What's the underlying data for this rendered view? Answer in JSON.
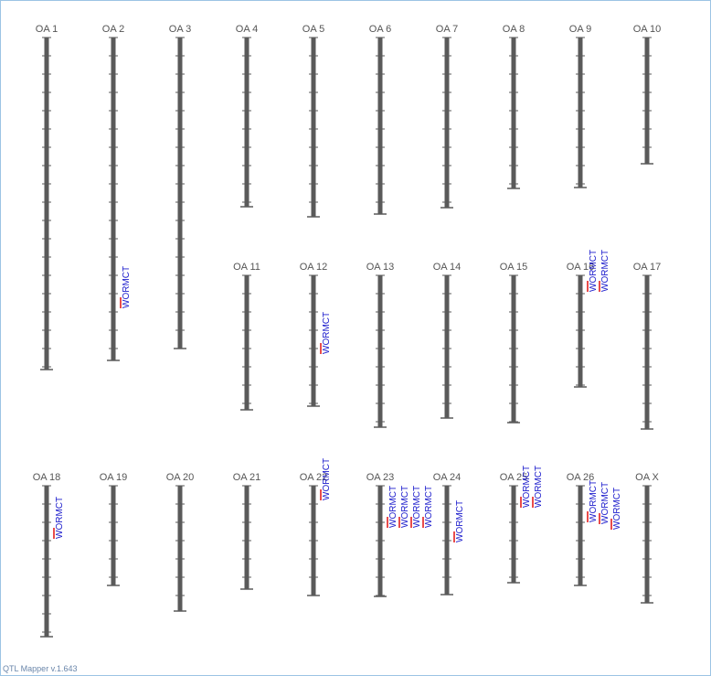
{
  "chromosomes": [
    {
      "label": "OA 1",
      "length": 181.5,
      "qtls": []
    },
    {
      "label": "OA 2",
      "length": 176.5,
      "qtls": [
        {
          "label": "WORMCT",
          "position": 148
        }
      ]
    },
    {
      "label": "OA 3",
      "length": 170,
      "qtls": []
    },
    {
      "label": "OA 4",
      "length": 92.5,
      "qtls": []
    },
    {
      "label": "OA 5",
      "length": 98,
      "qtls": []
    },
    {
      "label": "OA 6",
      "length": 96.5,
      "qtls": []
    },
    {
      "label": "OA 7",
      "length": 93,
      "qtls": []
    },
    {
      "label": "OA 8",
      "length": 82.5,
      "qtls": []
    },
    {
      "label": "OA 9",
      "length": 82,
      "qtls": []
    },
    {
      "label": "OA 10",
      "length": 69,
      "qtls": []
    },
    {
      "label": "OA 11",
      "length": 73.5,
      "qtls": []
    },
    {
      "label": "OA 12",
      "length": 71.5,
      "qtls": [
        {
          "label": "WORMCT",
          "position": 43
        }
      ]
    },
    {
      "label": "OA 13",
      "length": 83,
      "qtls": []
    },
    {
      "label": "OA 14",
      "length": 78,
      "qtls": []
    },
    {
      "label": "OA 15",
      "length": 80.5,
      "qtls": []
    },
    {
      "label": "OA 16",
      "length": 61,
      "qtls": [
        {
          "label": "WORMCT",
          "position": 9
        },
        {
          "label": "WORMCT",
          "position": 9
        }
      ]
    },
    {
      "label": "OA 17",
      "length": 84,
      "qtls": []
    },
    {
      "label": "OA 18",
      "length": 82.5,
      "qtls": [
        {
          "label": "WORMCT",
          "position": 29
        }
      ]
    },
    {
      "label": "OA 19",
      "length": 54.5,
      "qtls": []
    },
    {
      "label": "OA 20",
      "length": 68.5,
      "qtls": []
    },
    {
      "label": "OA 21",
      "length": 56.5,
      "qtls": []
    },
    {
      "label": "OA 22",
      "length": 60,
      "qtls": [
        {
          "label": "WORMCT",
          "position": 8
        }
      ]
    },
    {
      "label": "OA 23",
      "length": 60.5,
      "qtls": [
        {
          "label": "WORMCT",
          "position": 23
        },
        {
          "label": "WORMCT",
          "position": 23
        },
        {
          "label": "WORMCT",
          "position": 23
        },
        {
          "label": "WORMCT",
          "position": 23
        }
      ]
    },
    {
      "label": "OA 24",
      "length": 59.5,
      "qtls": [
        {
          "label": "WORMCT",
          "position": 31
        }
      ]
    },
    {
      "label": "OA 25",
      "length": 53,
      "qtls": [
        {
          "label": "WORMCT",
          "position": 12
        },
        {
          "label": "WORMCT",
          "position": 12
        }
      ]
    },
    {
      "label": "OA 26",
      "length": 54.5,
      "qtls": [
        {
          "label": "WORMCT",
          "position": 20
        },
        {
          "label": "WORMCT",
          "position": 21
        },
        {
          "label": "WORMCT",
          "position": 24
        }
      ]
    },
    {
      "label": "OA X",
      "length": 64,
      "qtls": []
    }
  ],
  "footer": "QTL Mapper v.1.643"
}
